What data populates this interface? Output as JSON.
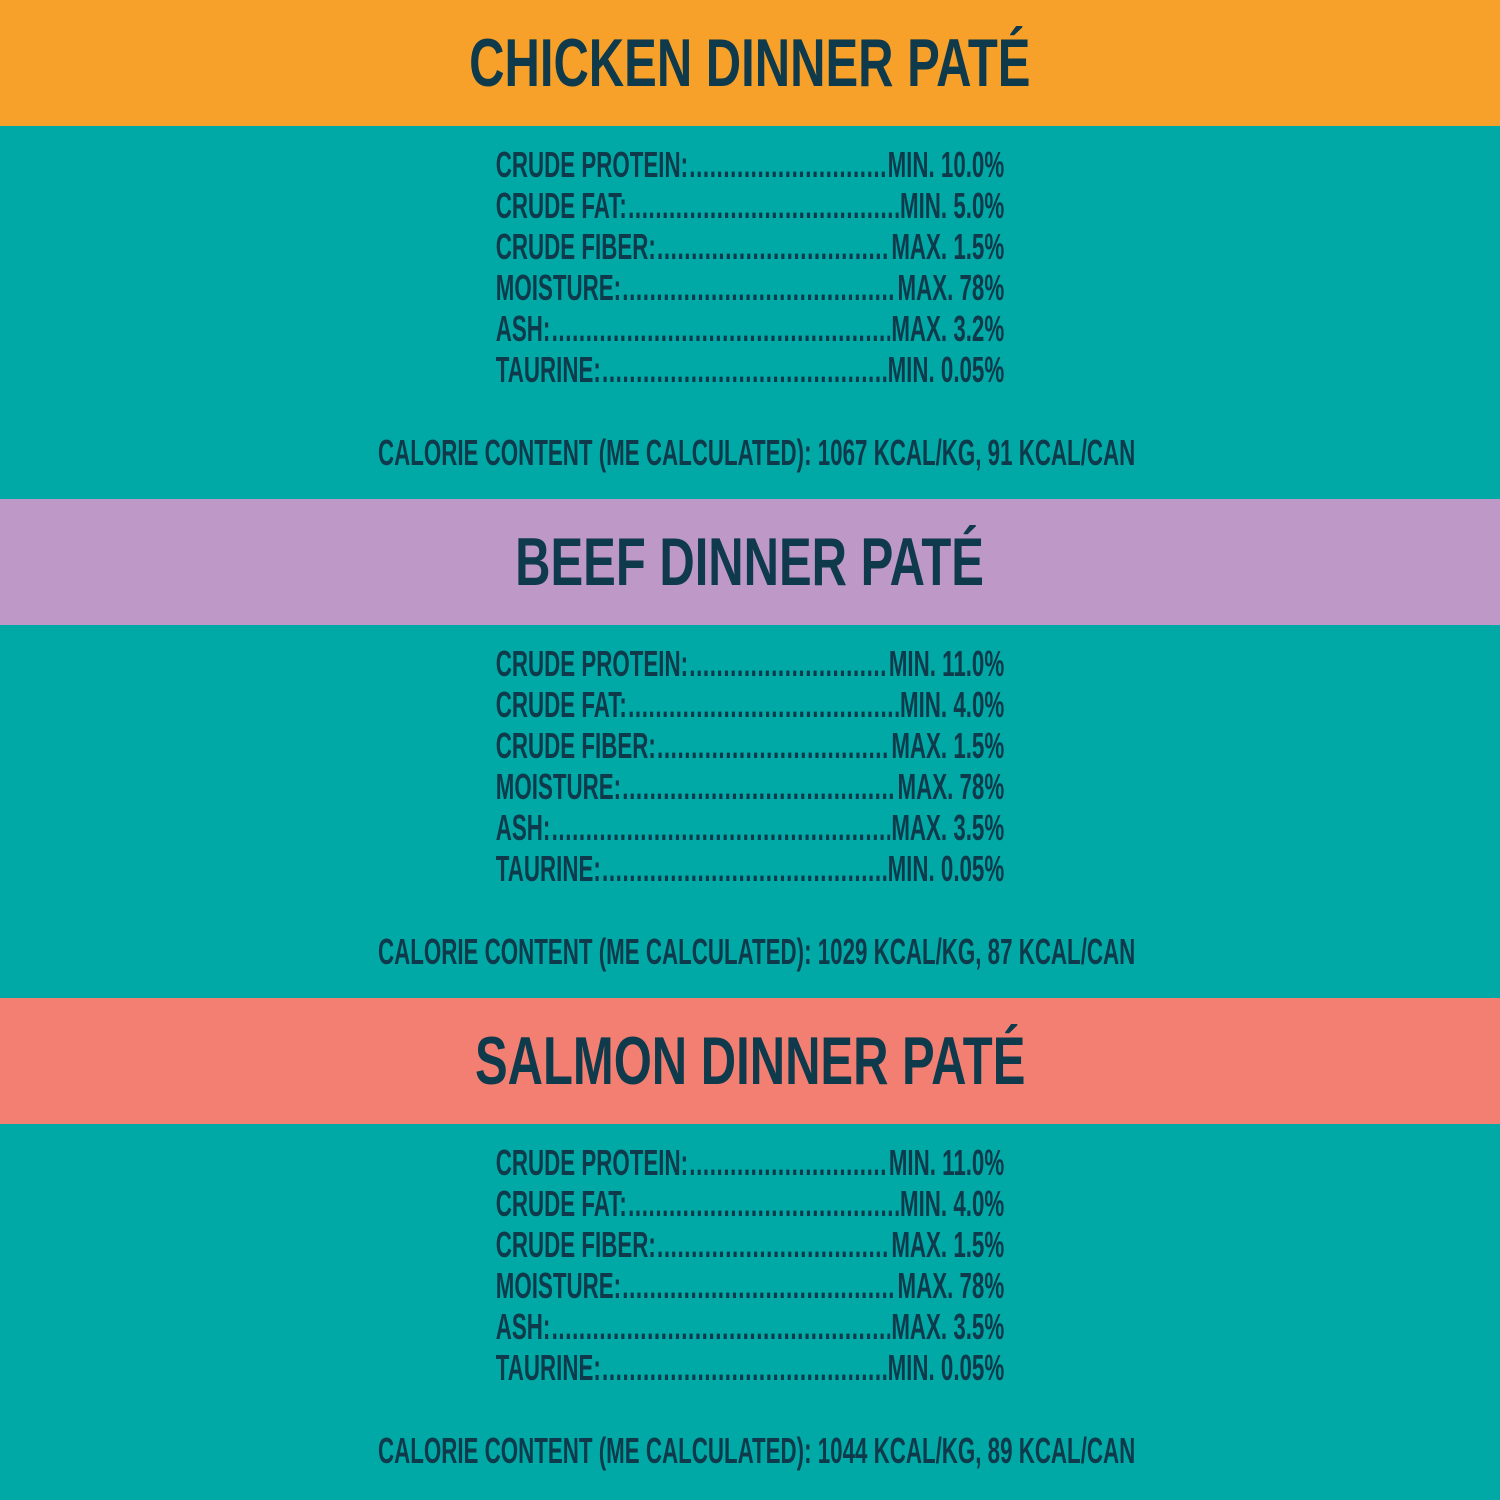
{
  "colors": {
    "text": "#0E3A4B",
    "panel": "#00A9A5"
  },
  "sections": [
    {
      "title": "CHICKEN DINNER PATÉ",
      "color": "#F7A02A",
      "rows": [
        {
          "label": "CRUDE PROTEIN:",
          "value": "MIN. 10.0%"
        },
        {
          "label": "CRUDE FAT:",
          "value": "MIN. 5.0%"
        },
        {
          "label": "CRUDE FIBER:",
          "value": "MAX. 1.5%"
        },
        {
          "label": "MOISTURE:",
          "value": "MAX. 78%"
        },
        {
          "label": "ASH:",
          "value": "MAX. 3.2%"
        },
        {
          "label": "TAURINE:",
          "value": "MIN. 0.05%"
        }
      ],
      "calorie": "CALORIE CONTENT (ME CALCULATED): 1067 KCAL/KG, 91 KCAL/CAN"
    },
    {
      "title": "BEEF DINNER PATÉ",
      "color": "#BE98C6",
      "rows": [
        {
          "label": "CRUDE PROTEIN:",
          "value": "MIN. 11.0%"
        },
        {
          "label": "CRUDE FAT:",
          "value": "MIN. 4.0%"
        },
        {
          "label": "CRUDE FIBER:",
          "value": "MAX. 1.5%"
        },
        {
          "label": "MOISTURE:",
          "value": "MAX. 78%"
        },
        {
          "label": "ASH:",
          "value": "MAX. 3.5%"
        },
        {
          "label": "TAURINE:",
          "value": "MIN. 0.05%"
        }
      ],
      "calorie": "CALORIE CONTENT (ME CALCULATED): 1029 KCAL/KG, 87 KCAL/CAN"
    },
    {
      "title": "SALMON DINNER PATÉ",
      "color": "#F27F72",
      "rows": [
        {
          "label": "CRUDE PROTEIN:",
          "value": "MIN. 11.0%"
        },
        {
          "label": "CRUDE FAT:",
          "value": "MIN. 4.0%"
        },
        {
          "label": "CRUDE FIBER:",
          "value": "MAX. 1.5%"
        },
        {
          "label": "MOISTURE:",
          "value": "MAX. 78%"
        },
        {
          "label": "ASH:",
          "value": "MAX. 3.5%"
        },
        {
          "label": "TAURINE:",
          "value": "MIN. 0.05%"
        }
      ],
      "calorie": "CALORIE CONTENT (ME CALCULATED): 1044 KCAL/KG, 89 KCAL/CAN"
    }
  ]
}
